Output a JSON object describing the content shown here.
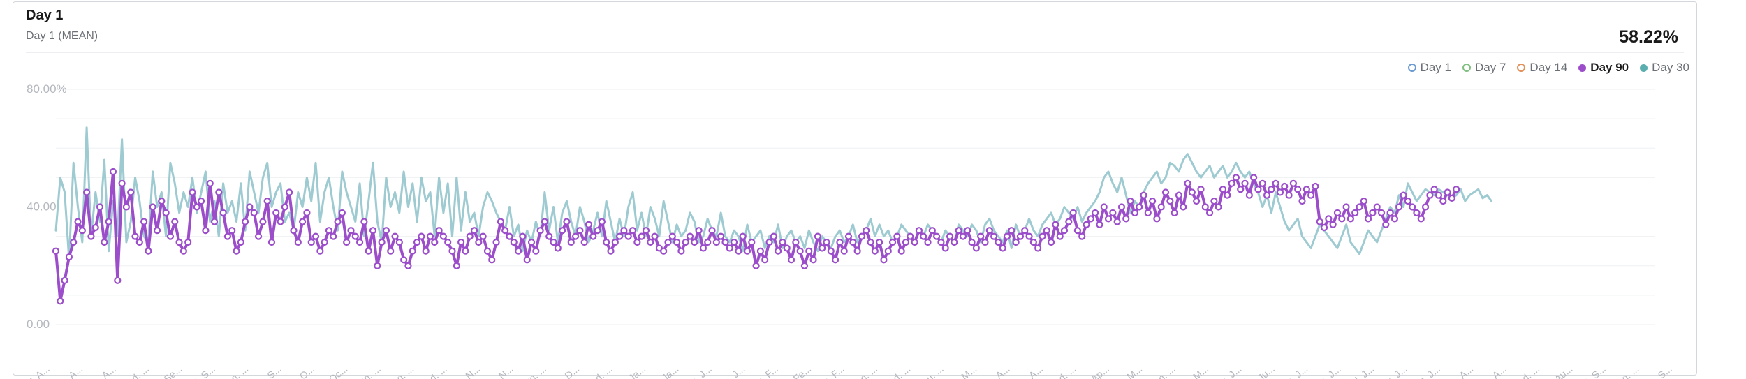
{
  "card": {
    "title": "Day 1",
    "subtitle": "Day 1 (MEAN)",
    "value": "58.22%"
  },
  "legend": [
    {
      "label": "Day 1",
      "color": "#6b9bd1",
      "style": "ring",
      "active": false
    },
    {
      "label": "Day 7",
      "color": "#7fbf7f",
      "style": "ring",
      "active": false
    },
    {
      "label": "Day 14",
      "color": "#e2915a",
      "style": "ring",
      "active": false
    },
    {
      "label": "Day 90",
      "color": "#9b4dca",
      "style": "dot",
      "active": true
    },
    {
      "label": "Day 30",
      "color": "#5aaeb0",
      "style": "dot",
      "active": false
    }
  ],
  "chart_data": {
    "type": "line",
    "ylim": [
      0,
      80
    ],
    "y_ticks": [
      {
        "value": 80,
        "label": "80.00%"
      },
      {
        "value": 40,
        "label": "40.00"
      },
      {
        "value": 0,
        "label": "0.00"
      }
    ],
    "grid": true,
    "x_tick_labels": [
      "Sat. A...",
      "Sun. A...",
      "Tue. A...",
      "Wed. ...",
      "Fri. Se...",
      "Sat. S...",
      "Mon. ...",
      "Tue. S...",
      "Thu. O...",
      "Fri. Oc...",
      "Sun. ...",
      "Mon. ...",
      "Wed. ...",
      "Thu. N...",
      "Sat. N...",
      "Sun. ...",
      "Tue. D...",
      "Wed. ...",
      "Fri. Ja...",
      "Sat. Ja...",
      "Mon. J...",
      "Tue. J...",
      "Thu. F...",
      "Fri. Fe...",
      "Sun. F...",
      "Mon. ...",
      "Wed. ...",
      "Thu. ...",
      "Sat. M...",
      "Sun. A...",
      "Tue. A...",
      "Wed. ...",
      "Fri. Ap...",
      "Sat. M...",
      "Mon. ...",
      "Tue. M...",
      "Thu. J...",
      "Fri. Ju...",
      "Sun. J...",
      "Mon. J...",
      "Wed. J...",
      "Thu. J...",
      "Sat. J...",
      "Sun. A...",
      "Tue. A...",
      "Wed. ...",
      "Fri. Au...",
      "Sat. S...",
      "Mon. ...",
      "Tue. S..."
    ],
    "series": [
      {
        "name": "Day 30",
        "color": "#9ecad1",
        "values": [
          32,
          50,
          45,
          22,
          55,
          40,
          28,
          67,
          30,
          45,
          35,
          56,
          25,
          42,
          30,
          63,
          28,
          35,
          50,
          42,
          30,
          28,
          52,
          40,
          45,
          30,
          55,
          48,
          38,
          45,
          40,
          50,
          38,
          45,
          52,
          35,
          42,
          30,
          48,
          38,
          42,
          35,
          48,
          32,
          52,
          45,
          38,
          50,
          55,
          40,
          45,
          48,
          35,
          38,
          32,
          45,
          40,
          50,
          42,
          55,
          35,
          45,
          50,
          40,
          32,
          52,
          45,
          40,
          35,
          48,
          30,
          42,
          55,
          35,
          28,
          50,
          40,
          45,
          38,
          52,
          40,
          48,
          35,
          50,
          42,
          45,
          30,
          50,
          38,
          48,
          30,
          50,
          32,
          45,
          35,
          38,
          30,
          40,
          45,
          42,
          38,
          35,
          32,
          40,
          30,
          34,
          25,
          32,
          28,
          35,
          30,
          45,
          32,
          40,
          28,
          38,
          42,
          35,
          30,
          40,
          35,
          28,
          32,
          38,
          30,
          42,
          35,
          28,
          36,
          30,
          40,
          45,
          32,
          38,
          30,
          40,
          36,
          30,
          42,
          35,
          28,
          34,
          30,
          32,
          38,
          35,
          28,
          30,
          36,
          32,
          30,
          38,
          30,
          28,
          32,
          30,
          25,
          34,
          28,
          30,
          32,
          26,
          30,
          28,
          34,
          26,
          30,
          32,
          28,
          30,
          26,
          32,
          28,
          25,
          30,
          28,
          26,
          30,
          32,
          28,
          30,
          34,
          28,
          30,
          32,
          36,
          30,
          34,
          30,
          32,
          28,
          30,
          34,
          32,
          30,
          28,
          32,
          30,
          34,
          32,
          30,
          28,
          32,
          30,
          28,
          34,
          32,
          30,
          34,
          32,
          28,
          34,
          36,
          32,
          30,
          28,
          32,
          26,
          34,
          30,
          32,
          36,
          32,
          30,
          34,
          36,
          38,
          34,
          36,
          40,
          38,
          36,
          40,
          35,
          38,
          40,
          42,
          45,
          50,
          52,
          48,
          45,
          50,
          44,
          38,
          42,
          40,
          45,
          48,
          50,
          52,
          48,
          50,
          55,
          54,
          52,
          56,
          58,
          55,
          52,
          50,
          52,
          54,
          50,
          52,
          54,
          50,
          52,
          55,
          52,
          50,
          52,
          48,
          45,
          40,
          44,
          38,
          45,
          40,
          35,
          32,
          34,
          36,
          30,
          28,
          26,
          30,
          34,
          32,
          30,
          28,
          26,
          30,
          34,
          28,
          26,
          24,
          28,
          32,
          30,
          28,
          32,
          36,
          40,
          38,
          44,
          40,
          48,
          45,
          42,
          44,
          46,
          45,
          44,
          46,
          45,
          44,
          43,
          44,
          46,
          42,
          44,
          45,
          46,
          43,
          44,
          42
        ]
      },
      {
        "name": "Day 90",
        "color": "#9b4dca",
        "values": [
          25,
          8,
          15,
          23,
          28,
          35,
          32,
          45,
          30,
          33,
          40,
          28,
          35,
          52,
          15,
          48,
          40,
          45,
          30,
          28,
          35,
          25,
          40,
          32,
          42,
          38,
          30,
          35,
          28,
          25,
          28,
          45,
          40,
          42,
          32,
          48,
          35,
          45,
          38,
          30,
          32,
          25,
          28,
          35,
          40,
          38,
          30,
          35,
          42,
          28,
          38,
          35,
          40,
          45,
          32,
          28,
          35,
          38,
          28,
          30,
          25,
          28,
          32,
          30,
          35,
          38,
          28,
          32,
          30,
          28,
          35,
          25,
          32,
          20,
          28,
          32,
          25,
          30,
          28,
          22,
          20,
          25,
          28,
          30,
          25,
          30,
          28,
          32,
          30,
          28,
          25,
          20,
          28,
          25,
          30,
          32,
          28,
          30,
          25,
          22,
          28,
          35,
          32,
          30,
          28,
          25,
          30,
          22,
          28,
          25,
          32,
          35,
          30,
          28,
          26,
          32,
          35,
          28,
          30,
          32,
          28,
          34,
          30,
          32,
          35,
          28,
          25,
          28,
          30,
          32,
          30,
          32,
          28,
          30,
          32,
          28,
          30,
          26,
          25,
          28,
          30,
          28,
          25,
          28,
          30,
          28,
          32,
          26,
          28,
          32,
          28,
          30,
          28,
          26,
          28,
          25,
          30,
          25,
          28,
          20,
          25,
          22,
          28,
          30,
          25,
          28,
          26,
          22,
          28,
          25,
          20,
          25,
          22,
          30,
          26,
          28,
          25,
          22,
          28,
          25,
          30,
          28,
          25,
          30,
          32,
          28,
          25,
          28,
          22,
          25,
          28,
          30,
          25,
          28,
          30,
          28,
          32,
          30,
          28,
          32,
          30,
          28,
          26,
          30,
          28,
          32,
          30,
          32,
          28,
          26,
          30,
          28,
          32,
          30,
          28,
          26,
          30,
          32,
          28,
          30,
          32,
          30,
          28,
          26,
          30,
          32,
          28,
          34,
          30,
          32,
          35,
          38,
          32,
          30,
          34,
          36,
          38,
          34,
          40,
          36,
          38,
          35,
          40,
          36,
          42,
          38,
          40,
          44,
          38,
          42,
          36,
          40,
          45,
          42,
          38,
          44,
          40,
          48,
          45,
          42,
          46,
          40,
          38,
          42,
          40,
          46,
          44,
          48,
          50,
          46,
          48,
          44,
          50,
          46,
          48,
          44,
          46,
          48,
          45,
          47,
          44,
          48,
          46,
          42,
          46,
          44,
          47,
          35,
          33,
          36,
          34,
          38,
          36,
          40,
          36,
          38,
          40,
          42,
          36,
          38,
          40,
          38,
          34,
          38,
          36,
          40,
          44,
          42,
          40,
          38,
          36,
          40,
          44,
          46,
          44,
          42,
          45,
          43,
          46
        ]
      }
    ]
  }
}
